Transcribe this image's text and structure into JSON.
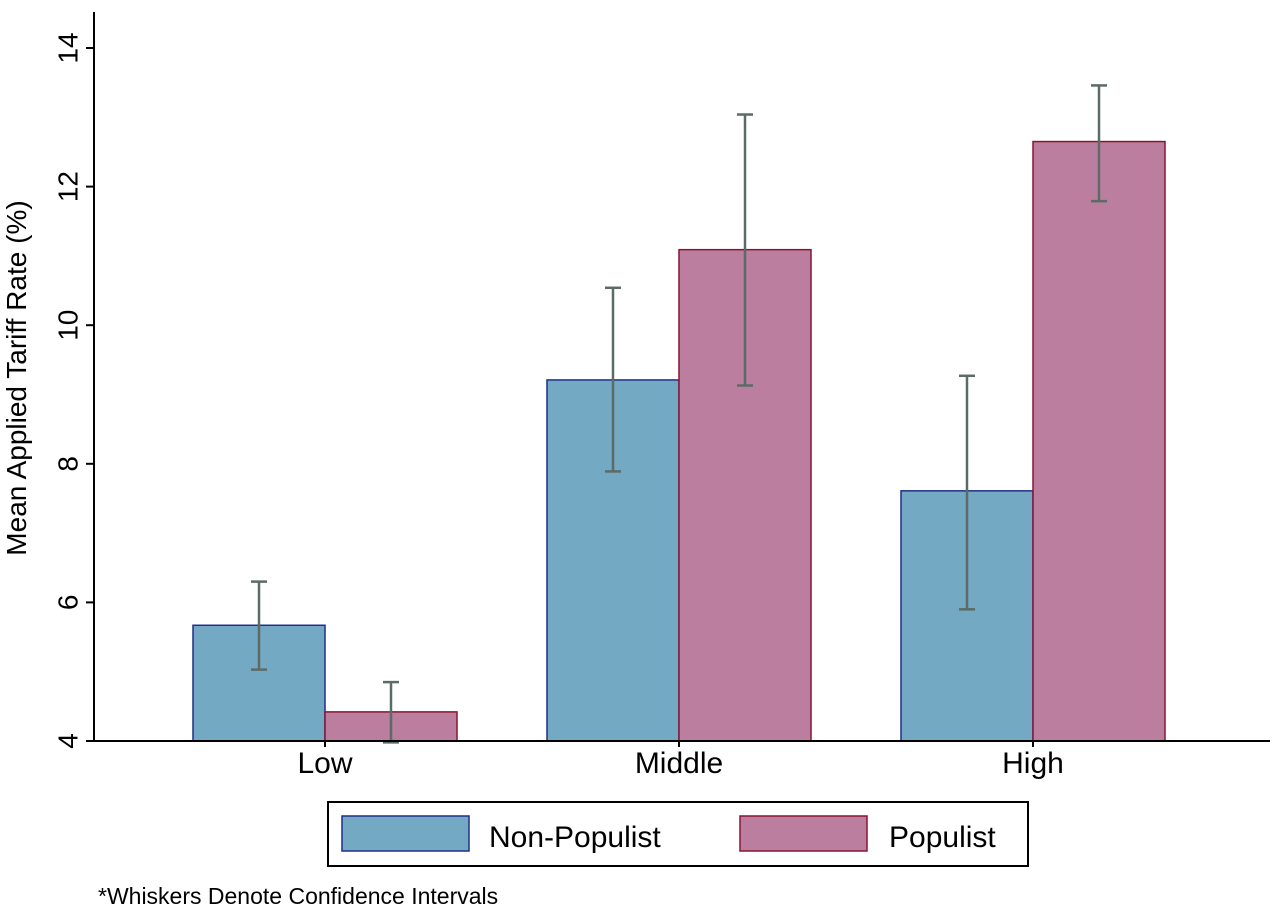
{
  "chart_data": {
    "type": "bar",
    "title": "",
    "xlabel": "",
    "ylabel": "Mean Applied Tariff Rate (%)",
    "ylim": [
      4,
      14.5
    ],
    "yticks": [
      "4",
      "6",
      "8",
      "10",
      "12",
      "14"
    ],
    "categories": [
      "Low",
      "Middle",
      "High"
    ],
    "series": [
      {
        "name": "Non-Populist",
        "color": "#74a9c4",
        "edge_color": "#1f2f8a",
        "values": [
          5.67,
          9.21,
          7.61
        ],
        "ci_low": [
          5.03,
          7.89,
          5.9
        ],
        "ci_high": [
          6.3,
          10.54,
          9.27
        ]
      },
      {
        "name": "Populist",
        "color": "#bb7e9f",
        "edge_color": "#8a1530",
        "values": [
          4.42,
          11.09,
          12.65
        ],
        "ci_low": [
          3.98,
          9.13,
          11.79
        ],
        "ci_high": [
          4.85,
          13.04,
          13.46
        ]
      }
    ],
    "legend_position": "bottom",
    "grid": false
  },
  "note": "*Whiskers Denote Confidence Intervals"
}
